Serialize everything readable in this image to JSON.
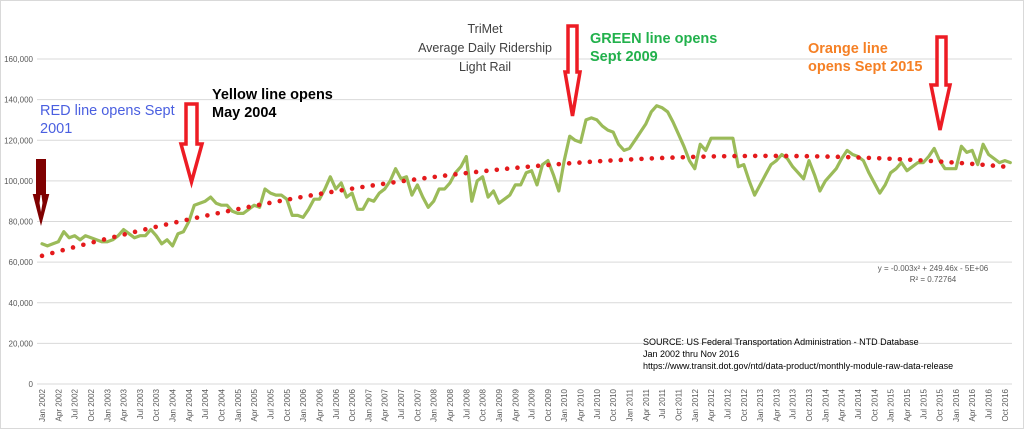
{
  "chart_data": {
    "type": "line",
    "title": [
      "TriMet",
      "Average Daily Ridership",
      "Light Rail"
    ],
    "xlabel": "",
    "ylabel": "",
    "ylim": [
      0,
      160000
    ],
    "y_ticks": [
      0,
      20000,
      40000,
      60000,
      80000,
      100000,
      120000,
      140000,
      160000
    ],
    "y_tick_labels": [
      "0",
      "20,000",
      "40,000",
      "60,000",
      "80,000",
      "100,000",
      "120,000",
      "140,000",
      "160,000"
    ],
    "x_start": "Jan 2002",
    "x_end": "Nov 2016",
    "x_frequency": "monthly",
    "x_tick_labels": [
      "Jan 2002",
      "Apr 2002",
      "Jul 2002",
      "Oct 2002",
      "Jan 2003",
      "Apr 2003",
      "Jul 2003",
      "Oct 2003",
      "Jan 2004",
      "Apr 2004",
      "Jul 2004",
      "Oct 2004",
      "Jan 2005",
      "Apr 2005",
      "Jul 2005",
      "Oct 2005",
      "Jan 2006",
      "Apr 2006",
      "Jul 2006",
      "Oct 2006",
      "Jan 2007",
      "Apr 2007",
      "Jul 2007",
      "Oct 2007",
      "Jan 2008",
      "Apr 2008",
      "Jul 2008",
      "Oct 2008",
      "Jan 2009",
      "Apr 2009",
      "Jul 2009",
      "Oct 2009",
      "Jan 2010",
      "Apr 2010",
      "Jul 2010",
      "Oct 2010",
      "Jan 2011",
      "Apr 2011",
      "Jul 2011",
      "Oct 2011",
      "Jan 2012",
      "Apr 2012",
      "Jul 2012",
      "Oct 2012",
      "Jan 2013",
      "Apr 2013",
      "Jul 2013",
      "Oct 2013",
      "Jan 2014",
      "Apr 2014",
      "Jul 2014",
      "Oct 2014",
      "Jan 2015",
      "Apr 2015",
      "Jul 2015",
      "Oct 2015",
      "Jan 2016",
      "Apr 2016",
      "Jul 2016",
      "Oct 2016"
    ],
    "grid": true,
    "series": [
      {
        "name": "Average Daily Ridership",
        "color": "#9bbb59",
        "values": [
          69000,
          68000,
          69000,
          70000,
          75000,
          72000,
          73000,
          71000,
          73000,
          72000,
          71000,
          70000,
          70000,
          71000,
          73000,
          76000,
          74000,
          72000,
          73000,
          73000,
          76000,
          73000,
          69000,
          71000,
          68000,
          74000,
          75000,
          80000,
          88000,
          89000,
          90000,
          92000,
          89000,
          88000,
          88000,
          85000,
          84000,
          84000,
          86000,
          88000,
          87000,
          96000,
          94000,
          93000,
          93000,
          91000,
          83000,
          83000,
          82000,
          86000,
          91000,
          91000,
          96000,
          102000,
          96000,
          99000,
          92000,
          94000,
          86000,
          86000,
          91000,
          90000,
          94000,
          96000,
          100000,
          106000,
          101000,
          102000,
          93000,
          98000,
          92000,
          87000,
          90000,
          96000,
          96000,
          99000,
          104000,
          107000,
          112000,
          90000,
          100000,
          102000,
          92000,
          95000,
          89000,
          91000,
          93000,
          98000,
          98000,
          104000,
          105000,
          98000,
          108000,
          110000,
          103000,
          95000,
          110000,
          122000,
          120000,
          119000,
          130000,
          131000,
          130000,
          127000,
          125000,
          124000,
          118000,
          115000,
          116000,
          120000,
          124000,
          128000,
          134000,
          137000,
          136000,
          134000,
          129000,
          123000,
          117000,
          110000,
          106000,
          118000,
          115000,
          121000,
          121000,
          121000,
          121000,
          121000,
          107000,
          108000,
          100000,
          93000,
          98000,
          103000,
          108000,
          110000,
          113000,
          111000,
          107000,
          104000,
          101000,
          110000,
          103000,
          95000,
          100000,
          103000,
          106000,
          111000,
          115000,
          113000,
          112000,
          110000,
          104000,
          99000,
          94000,
          98000,
          104000,
          106000,
          109000,
          105000,
          107000,
          109000,
          109000,
          112000,
          116000,
          110000,
          106000,
          106000,
          106000,
          117000,
          114000,
          115000,
          108000,
          118000,
          113000,
          111000,
          109000,
          110000,
          109000
        ]
      },
      {
        "name": "Poly. trendline",
        "color": "#e41a1c",
        "style": "dotted",
        "equation": "y = -0.003x² + 249.46x - 5E+06",
        "r_squared": "R² = 0.72764"
      }
    ],
    "annotations": [
      {
        "text": [
          "RED line opens Sept",
          "2001"
        ],
        "color": "#4a5fe0",
        "arrow_color": "#7f0000",
        "at": "Jan 2002"
      },
      {
        "text": [
          "Yellow line opens",
          "May 2004"
        ],
        "color": "#000000",
        "arrow_color": "#ed1c24",
        "at": "May 2004"
      },
      {
        "text": [
          "GREEN line opens",
          "Sept 2009"
        ],
        "color": "#22b14c",
        "arrow_color": "#ed1c24",
        "at": "Feb 2010"
      },
      {
        "text": [
          "Orange line",
          "opens Sept 2015"
        ],
        "color": "#f58025",
        "arrow_color": "#ed1c24",
        "at": "Sept 2015"
      }
    ],
    "source": [
      "SOURCE: US Federal Transportation  Administration  - NTD Database",
      "Jan 2002 thru  Nov 2016",
      "https://www.transit.dot.gov/ntd/data-product/monthly-module-raw-data-release"
    ]
  }
}
